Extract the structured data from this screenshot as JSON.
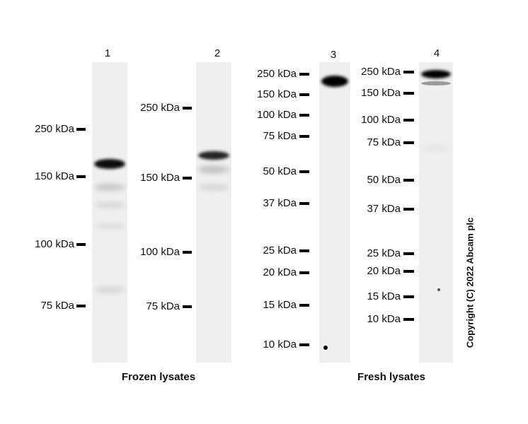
{
  "lanes": [
    {
      "label": "1",
      "markers": [
        "250 kDa",
        "150 kDa",
        "100 kDa",
        "75 kDa"
      ]
    },
    {
      "label": "2",
      "markers": [
        "250 kDa",
        "150 kDa",
        "100 kDa",
        "75 kDa"
      ]
    },
    {
      "label": "3",
      "markers": [
        "250 kDa",
        "150 kDa",
        "100 kDa",
        "75 kDa",
        "50 kDa",
        "37 kDa",
        "25 kDa",
        "20 kDa",
        "15 kDa",
        "10 kDa"
      ]
    },
    {
      "label": "4",
      "markers": [
        "250 kDa",
        "150 kDa",
        "100 kDa",
        "75 kDa",
        "50 kDa",
        "37 kDa",
        "25 kDa",
        "20 kDa",
        "15 kDa",
        "10 kDa"
      ]
    }
  ],
  "groups": [
    "Frozen lysates",
    "Fresh lysates"
  ],
  "copyright": "Copyright (C) 2022 Abcam plc"
}
